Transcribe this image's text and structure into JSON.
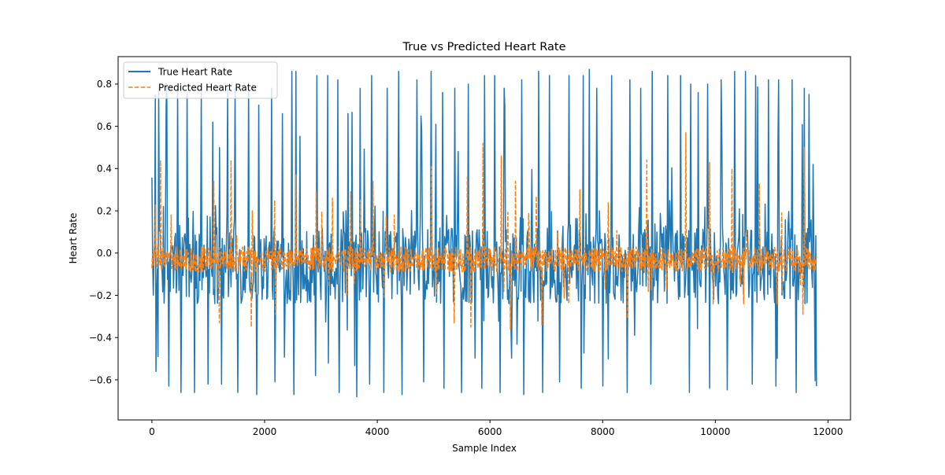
{
  "chart_data": {
    "type": "line",
    "title": "True vs Predicted Heart Rate",
    "xlabel": "Sample Index",
    "ylabel": "Heart Rate",
    "xlim": [
      -600,
      12400
    ],
    "ylim": [
      -0.79,
      0.93
    ],
    "x_ticks": [
      0,
      2000,
      4000,
      6000,
      8000,
      10000,
      12000
    ],
    "y_ticks": [
      -0.6,
      -0.4,
      -0.2,
      0.0,
      0.2,
      0.4,
      0.6,
      0.8
    ],
    "x_tick_labels": [
      "0",
      "2000",
      "4000",
      "6000",
      "8000",
      "10000",
      "12000"
    ],
    "y_tick_labels": [
      "−0.6",
      "−0.4",
      "−0.2",
      "0.0",
      "0.2",
      "0.4",
      "0.6",
      "0.8"
    ],
    "grid": false,
    "legend": {
      "placement": "top-left"
    },
    "series": [
      {
        "name": "True Heart Rate",
        "color": "#1f77b4",
        "line_style": "solid",
        "x_start": 0,
        "x_end": 11800,
        "peaks": [
          [
            60,
            0.75
          ],
          [
            120,
            0.78
          ],
          [
            260,
            0.8
          ],
          [
            460,
            0.78
          ],
          [
            620,
            0.76
          ],
          [
            870,
            0.76
          ],
          [
            1080,
            0.62
          ],
          [
            1340,
            0.78
          ],
          [
            1480,
            0.78
          ],
          [
            1720,
            0.8
          ],
          [
            1900,
            0.7
          ],
          [
            2120,
            0.78
          ],
          [
            2320,
            0.66
          ],
          [
            2480,
            0.86
          ],
          [
            2560,
            0.86
          ],
          [
            2930,
            0.84
          ],
          [
            3120,
            0.84
          ],
          [
            3300,
            0.82
          ],
          [
            3480,
            0.66
          ],
          [
            3700,
            0.78
          ],
          [
            3900,
            0.84
          ],
          [
            4180,
            0.78
          ],
          [
            4380,
            0.86
          ],
          [
            4700,
            0.82
          ],
          [
            4960,
            0.86
          ],
          [
            5160,
            0.76
          ],
          [
            5380,
            0.78
          ],
          [
            5620,
            0.8
          ],
          [
            5900,
            0.84
          ],
          [
            6080,
            0.84
          ],
          [
            6250,
            0.78
          ],
          [
            6560,
            0.82
          ],
          [
            6860,
            0.86
          ],
          [
            7060,
            0.84
          ],
          [
            7400,
            0.84
          ],
          [
            7650,
            0.84
          ],
          [
            7760,
            0.87
          ],
          [
            7900,
            0.78
          ],
          [
            8160,
            0.84
          ],
          [
            8480,
            0.82
          ],
          [
            8680,
            0.78
          ],
          [
            8880,
            0.86
          ],
          [
            9160,
            0.84
          ],
          [
            9380,
            0.84
          ],
          [
            9560,
            0.8
          ],
          [
            9700,
            0.76
          ],
          [
            9860,
            0.8
          ],
          [
            10100,
            0.82
          ],
          [
            10340,
            0.86
          ],
          [
            10540,
            0.86
          ],
          [
            10720,
            0.84
          ],
          [
            10940,
            0.82
          ],
          [
            11120,
            0.82
          ],
          [
            11360,
            0.82
          ],
          [
            11580,
            0.78
          ],
          [
            11740,
            0.42
          ]
        ],
        "troughs": [
          [
            110,
            -0.49
          ],
          [
            300,
            -0.63
          ],
          [
            520,
            -0.66
          ],
          [
            760,
            -0.66
          ],
          [
            1000,
            -0.62
          ],
          [
            1240,
            -0.62
          ],
          [
            1520,
            -0.66
          ],
          [
            1860,
            -0.67
          ],
          [
            2180,
            -0.61
          ],
          [
            2520,
            -0.67
          ],
          [
            2900,
            -0.58
          ],
          [
            3320,
            -0.66
          ],
          [
            3640,
            -0.68
          ],
          [
            3860,
            -0.62
          ],
          [
            4120,
            -0.66
          ],
          [
            4440,
            -0.67
          ],
          [
            4820,
            -0.61
          ],
          [
            5180,
            -0.64
          ],
          [
            5500,
            -0.66
          ],
          [
            5860,
            -0.64
          ],
          [
            6180,
            -0.66
          ],
          [
            6600,
            -0.67
          ],
          [
            6940,
            -0.66
          ],
          [
            7240,
            -0.61
          ],
          [
            7620,
            -0.64
          ],
          [
            8000,
            -0.63
          ],
          [
            8440,
            -0.66
          ],
          [
            8860,
            -0.62
          ],
          [
            9160,
            -0.72
          ],
          [
            9540,
            -0.66
          ],
          [
            9900,
            -0.64
          ],
          [
            10340,
            -0.66
          ],
          [
            10660,
            -0.62
          ],
          [
            11080,
            -0.63
          ],
          [
            11440,
            -0.66
          ],
          [
            11800,
            -0.63
          ]
        ]
      },
      {
        "name": "Predicted Heart Rate",
        "color": "#ff7f0e",
        "line_style": "dashed",
        "x_start": 0,
        "x_end": 11800,
        "baseline": -0.03,
        "peaks": [
          [
            60,
            0.23
          ],
          [
            150,
            0.44
          ],
          [
            340,
            0.18
          ],
          [
            1100,
            0.34
          ],
          [
            1400,
            0.44
          ],
          [
            1780,
            0.2
          ],
          [
            2180,
            0.25
          ],
          [
            2560,
            0.37
          ],
          [
            2920,
            0.29
          ],
          [
            3200,
            0.26
          ],
          [
            3530,
            0.29
          ],
          [
            3700,
            0.25
          ],
          [
            3920,
            0.34
          ],
          [
            4300,
            0.18
          ],
          [
            4960,
            0.41
          ],
          [
            5600,
            0.36
          ],
          [
            5880,
            0.52
          ],
          [
            6200,
            0.46
          ],
          [
            6450,
            0.34
          ],
          [
            6820,
            0.27
          ],
          [
            7600,
            0.3
          ],
          [
            8100,
            0.24
          ],
          [
            8780,
            0.44
          ],
          [
            9480,
            0.57
          ],
          [
            9900,
            0.43
          ],
          [
            10300,
            0.4
          ],
          [
            10780,
            0.33
          ],
          [
            11180,
            0.19
          ],
          [
            11580,
            0.5
          ]
        ],
        "troughs": [
          [
            1200,
            -0.33
          ],
          [
            1760,
            -0.35
          ],
          [
            2200,
            -0.29
          ],
          [
            3460,
            -0.2
          ],
          [
            4120,
            -0.21
          ],
          [
            5360,
            -0.33
          ],
          [
            5660,
            -0.35
          ],
          [
            6360,
            -0.36
          ],
          [
            6920,
            -0.34
          ],
          [
            7400,
            -0.24
          ],
          [
            8440,
            -0.31
          ],
          [
            9960,
            -0.24
          ],
          [
            10500,
            -0.24
          ],
          [
            11100,
            -0.24
          ],
          [
            11560,
            -0.29
          ]
        ]
      }
    ]
  }
}
